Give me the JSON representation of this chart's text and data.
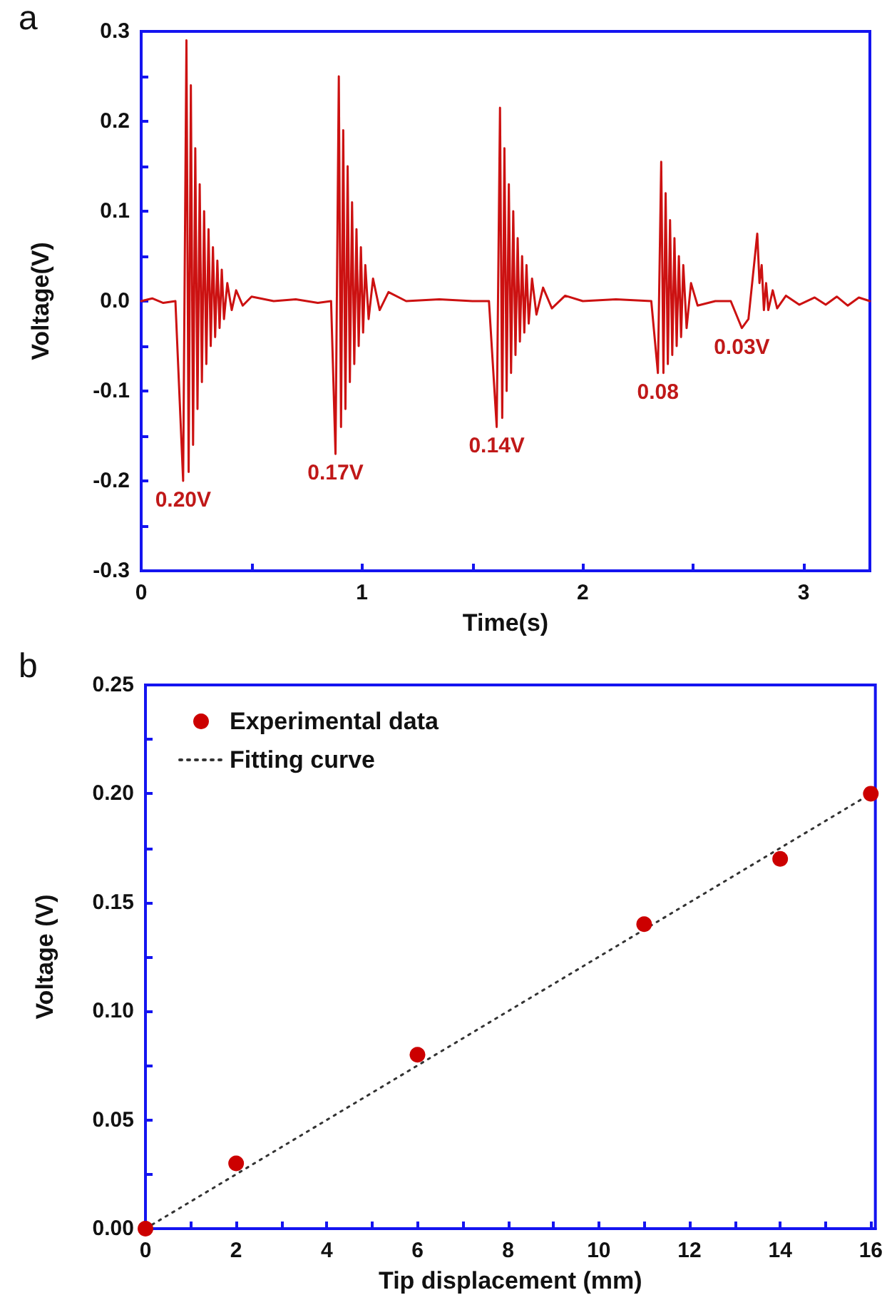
{
  "chart_data": [
    {
      "type": "line",
      "title": "a",
      "xlabel": "Time(s)",
      "ylabel": "Voltage(V)",
      "xlim": [
        0,
        3.3
      ],
      "ylim": [
        -0.3,
        0.3
      ],
      "xticks": [
        0,
        {
          "value": 0.5,
          "label": null
        },
        1,
        {
          "value": 1.5,
          "label": null
        },
        2,
        {
          "value": 2.5,
          "label": null
        },
        3
      ],
      "yticks": [
        {
          "value": -0.3,
          "label": "-0.3"
        },
        {
          "value": -0.25,
          "label": null
        },
        {
          "value": -0.2,
          "label": "-0.2"
        },
        {
          "value": -0.15,
          "label": null
        },
        {
          "value": -0.1,
          "label": "-0.1"
        },
        {
          "value": -0.05,
          "label": null
        },
        {
          "value": 0,
          "label": "0.0"
        },
        {
          "value": 0.05,
          "label": null
        },
        {
          "value": 0.1,
          "label": "0.1"
        },
        {
          "value": 0.15,
          "label": null
        },
        {
          "value": 0.2,
          "label": "0.2"
        },
        {
          "value": 0.25,
          "label": null
        },
        {
          "value": 0.3,
          "label": "0.3"
        }
      ],
      "grid": false,
      "legend": false,
      "marker": "none",
      "line_style": "solid",
      "series": [
        {
          "color": "#cc1111",
          "x": [
            0,
            0.05,
            0.1,
            0.155,
            0.19,
            0.205,
            0.215,
            0.225,
            0.235,
            0.245,
            0.255,
            0.265,
            0.275,
            0.285,
            0.295,
            0.305,
            0.315,
            0.325,
            0.335,
            0.345,
            0.355,
            0.365,
            0.375,
            0.39,
            0.41,
            0.43,
            0.46,
            0.5,
            0.6,
            0.7,
            0.8,
            0.86,
            0.88,
            0.895,
            0.905,
            0.915,
            0.925,
            0.935,
            0.945,
            0.955,
            0.965,
            0.975,
            0.985,
            0.995,
            1.005,
            1.015,
            1.03,
            1.05,
            1.08,
            1.12,
            1.2,
            1.35,
            1.5,
            1.575,
            1.61,
            1.625,
            1.635,
            1.645,
            1.655,
            1.665,
            1.675,
            1.685,
            1.695,
            1.705,
            1.715,
            1.725,
            1.735,
            1.745,
            1.755,
            1.77,
            1.79,
            1.82,
            1.86,
            1.92,
            2.0,
            2.15,
            2.31,
            2.34,
            2.355,
            2.365,
            2.375,
            2.385,
            2.395,
            2.405,
            2.415,
            2.425,
            2.435,
            2.445,
            2.455,
            2.47,
            2.49,
            2.52,
            2.6,
            2.67,
            2.72,
            2.75,
            2.79,
            2.8,
            2.81,
            2.82,
            2.83,
            2.84,
            2.86,
            2.88,
            2.92,
            2.98,
            3.05,
            3.1,
            3.15,
            3.2,
            3.25,
            3.3
          ],
          "values": [
            0,
            0.003,
            -0.002,
            0,
            -0.2,
            0.29,
            -0.19,
            0.24,
            -0.16,
            0.17,
            -0.12,
            0.13,
            -0.09,
            0.1,
            -0.07,
            0.08,
            -0.05,
            0.06,
            -0.04,
            0.045,
            -0.03,
            0.035,
            -0.02,
            0.02,
            -0.01,
            0.012,
            -0.005,
            0.005,
            0,
            0.002,
            -0.002,
            0,
            -0.17,
            0.25,
            -0.14,
            0.19,
            -0.12,
            0.15,
            -0.09,
            0.11,
            -0.07,
            0.08,
            -0.05,
            0.06,
            -0.035,
            0.04,
            -0.02,
            0.025,
            -0.01,
            0.01,
            0,
            0.002,
            0,
            0,
            -0.14,
            0.215,
            -0.13,
            0.17,
            -0.1,
            0.13,
            -0.08,
            0.1,
            -0.06,
            0.07,
            -0.045,
            0.05,
            -0.035,
            0.04,
            -0.025,
            0.025,
            -0.015,
            0.015,
            -0.008,
            0.006,
            0,
            0.002,
            0,
            -0.08,
            0.155,
            -0.08,
            0.12,
            -0.07,
            0.09,
            -0.06,
            0.07,
            -0.05,
            0.05,
            -0.04,
            0.04,
            -0.03,
            0.02,
            -0.005,
            0,
            0,
            -0.03,
            -0.02,
            0.075,
            0.02,
            0.04,
            -0.01,
            0.02,
            -0.01,
            0.012,
            -0.008,
            0.006,
            -0.004,
            0.004,
            -0.004,
            0.005,
            -0.005,
            0.004,
            0
          ]
        }
      ],
      "annotations": [
        {
          "text": "0.20V",
          "x": 0.19,
          "y": -0.2
        },
        {
          "text": "0.17V",
          "x": 0.88,
          "y": -0.17
        },
        {
          "text": "0.14V",
          "x": 1.61,
          "y": -0.14
        },
        {
          "text": "0.08",
          "x": 2.34,
          "y": -0.08
        },
        {
          "text": "0.03V",
          "x": 2.72,
          "y": -0.03
        }
      ]
    },
    {
      "type": "scatter",
      "title": "b",
      "xlabel": "Tip displacement (mm)",
      "ylabel": "Voltage (V)",
      "xlim": [
        0,
        16.1
      ],
      "ylim": [
        0,
        0.25
      ],
      "xticks": [
        0,
        {
          "value": 1,
          "label": null
        },
        2,
        {
          "value": 3,
          "label": null
        },
        4,
        {
          "value": 5,
          "label": null
        },
        6,
        {
          "value": 7,
          "label": null
        },
        8,
        {
          "value": 9,
          "label": null
        },
        10,
        {
          "value": 11,
          "label": null
        },
        12,
        {
          "value": 13,
          "label": null
        },
        14,
        {
          "value": 15,
          "label": null
        },
        16
      ],
      "yticks": [
        {
          "value": 0,
          "label": "0.00"
        },
        {
          "value": 0.025,
          "label": null
        },
        {
          "value": 0.05,
          "label": "0.05"
        },
        {
          "value": 0.075,
          "label": null
        },
        {
          "value": 0.1,
          "label": "0.10"
        },
        {
          "value": 0.125,
          "label": null
        },
        {
          "value": 0.15,
          "label": "0.15"
        },
        {
          "value": 0.175,
          "label": null
        },
        {
          "value": 0.2,
          "label": "0.20"
        },
        {
          "value": 0.225,
          "label": null
        },
        {
          "value": 0.25,
          "label": "0.25"
        }
      ],
      "grid": false,
      "legend": "top left",
      "marker": "circle",
      "series": [
        {
          "name": "Experimental data",
          "color": "#cc0000",
          "x": [
            0,
            2,
            6,
            11,
            14,
            16
          ],
          "values": [
            0,
            0.03,
            0.08,
            0.14,
            0.17,
            0.2
          ]
        },
        {
          "name": "Fitting curve",
          "type": "line",
          "color": "#333333",
          "marker": "none",
          "line_style": "dotted",
          "x": [
            0,
            16
          ],
          "values": [
            0,
            0.2
          ]
        }
      ]
    }
  ]
}
